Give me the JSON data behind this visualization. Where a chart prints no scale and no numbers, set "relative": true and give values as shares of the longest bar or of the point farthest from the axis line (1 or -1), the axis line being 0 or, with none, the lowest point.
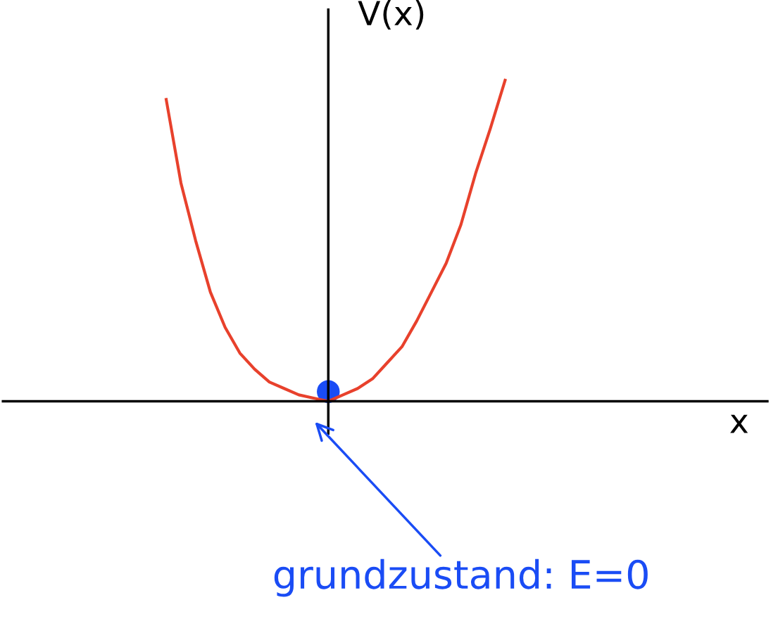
{
  "chart_data": {
    "type": "line",
    "relative": true,
    "ylabel": "V(x)",
    "categories": [
      null,
      null,
      null,
      null,
      null,
      null,
      null,
      null,
      null,
      null,
      null,
      null,
      null,
      null,
      null,
      null,
      null,
      null,
      null,
      null,
      null,
      null,
      null,
      null
    ],
    "series": [
      {
        "color": "#e8412c",
        "values": [
          0.94,
          0.68,
          0.5,
          0.34,
          0.23,
          0.15,
          0.1,
          0.06,
          0.04,
          0.02,
          0.01,
          0,
          0.02,
          0.04,
          0.07,
          0.12,
          0.17,
          0.25,
          0.34,
          0.43,
          0.55,
          0.71,
          0.85,
          1.0
        ]
      }
    ],
    "annotations": [
      "grundzustand: E=0",
      "x"
    ],
    "legend": false
  }
}
